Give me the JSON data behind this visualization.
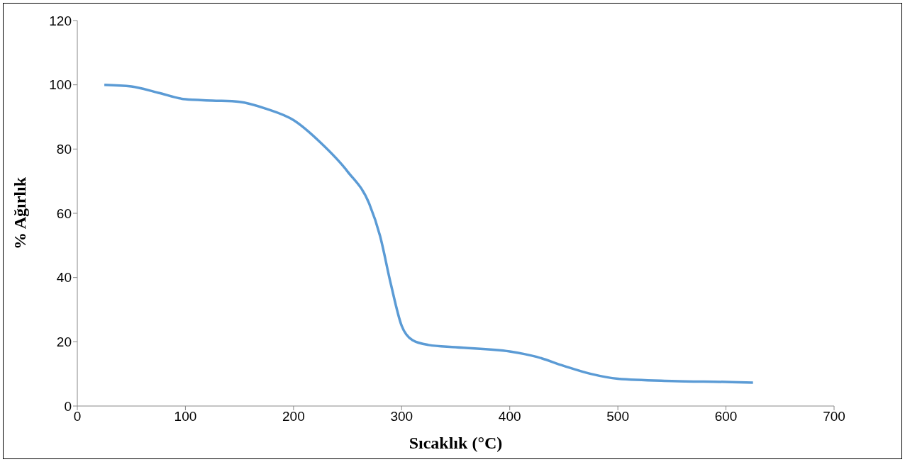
{
  "chart_data": {
    "type": "line",
    "xlabel": "Sıcaklık (°C)",
    "ylabel": "% Ağırlık",
    "xlim": [
      0,
      700
    ],
    "xticks": [
      0,
      100,
      200,
      300,
      400,
      500,
      600,
      700
    ],
    "ylim": [
      0,
      120
    ],
    "yticks": [
      0,
      20,
      40,
      60,
      80,
      100,
      120
    ],
    "grid": false,
    "legend": false,
    "marker": "none",
    "line_style": "solid",
    "series": [
      {
        "color": "#5b9bd5",
        "x": [
          25,
          50,
          75,
          100,
          125,
          150,
          175,
          200,
          225,
          250,
          270,
          280,
          290,
          300,
          310,
          325,
          350,
          400,
          425,
          450,
          475,
          500,
          550,
          600,
          625
        ],
        "values": [
          100,
          99.5,
          97.5,
          95.5,
          95.1,
          94.7,
          92.5,
          89,
          82,
          73,
          63,
          53,
          38,
          25,
          20.5,
          19,
          18.3,
          17,
          15.3,
          12.5,
          10,
          8.5,
          7.8,
          7.5,
          7.3
        ]
      }
    ]
  }
}
